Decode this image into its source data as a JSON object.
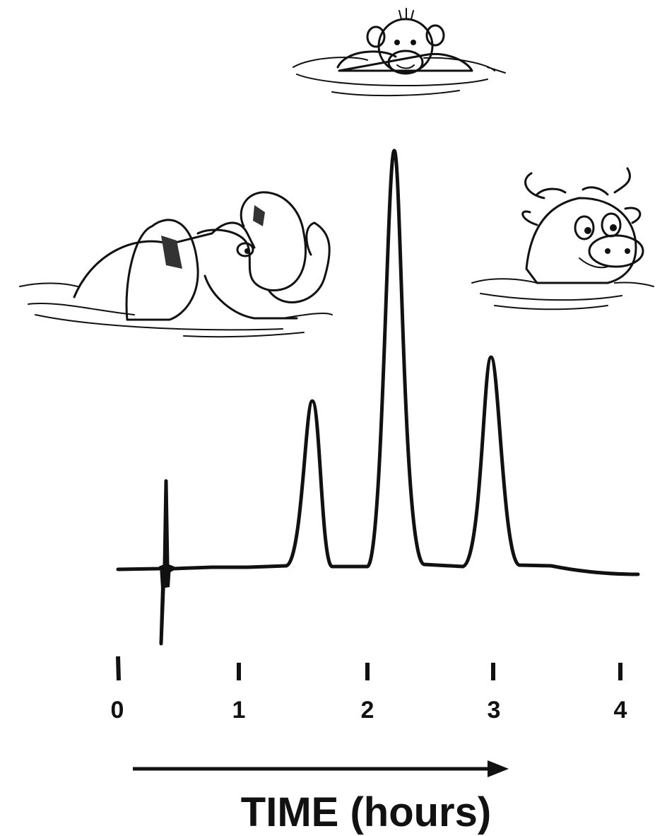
{
  "axis": {
    "title": "TIME (hours)",
    "ticks": [
      "0",
      "1",
      "2",
      "3",
      "4"
    ]
  }
}
